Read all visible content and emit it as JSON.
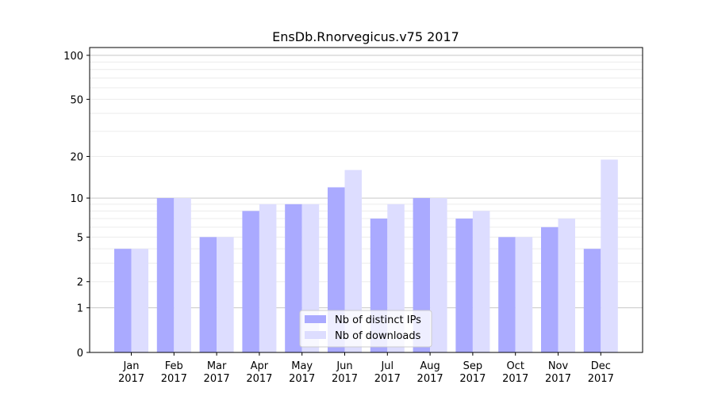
{
  "chart_data": {
    "type": "bar",
    "title": "EnsDb.Rnorvegicus.v75 2017",
    "xlabel": "",
    "ylabel": "",
    "yscale": "log10(1+y)",
    "ylim": [
      0,
      113
    ],
    "yticks": [
      0,
      1,
      2,
      5,
      10,
      20,
      50,
      100
    ],
    "categories": [
      "Jan\n2017",
      "Feb\n2017",
      "Mar\n2017",
      "Apr\n2017",
      "May\n2017",
      "Jun\n2017",
      "Jul\n2017",
      "Aug\n2017",
      "Sep\n2017",
      "Oct\n2017",
      "Nov\n2017",
      "Dec\n2017"
    ],
    "series": [
      {
        "name": "Nb of distinct IPs",
        "color": "#aaaaff",
        "values": [
          4,
          10,
          5,
          8,
          9,
          12,
          7,
          10,
          7,
          5,
          6,
          4
        ]
      },
      {
        "name": "Nb of downloads",
        "color": "#ddddff",
        "values": [
          4,
          10,
          5,
          9,
          9,
          16,
          9,
          10,
          8,
          5,
          7,
          19
        ]
      }
    ],
    "grid": true,
    "legend": "bottom-center"
  }
}
